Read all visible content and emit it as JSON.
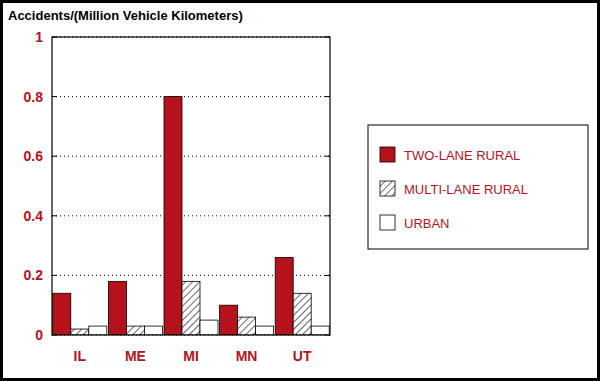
{
  "chart_data": {
    "type": "bar",
    "title": "Accidents/(Million Vehicle Kilometers)",
    "categories": [
      "IL",
      "ME",
      "MI",
      "MN",
      "UT"
    ],
    "series": [
      {
        "name": "TWO-LANE RURAL",
        "color": "#b5121b",
        "values": [
          0.14,
          0.18,
          0.8,
          0.1,
          0.26
        ]
      },
      {
        "name": "MULTI-LANE RURAL",
        "color": "#ffffff",
        "values": [
          0.02,
          0.03,
          0.18,
          0.06,
          0.14
        ]
      },
      {
        "name": "URBAN",
        "color": "#ffffff",
        "values": [
          0.03,
          0.03,
          0.05,
          0.03,
          0.03
        ]
      }
    ],
    "ylim": [
      0,
      1
    ],
    "yticks": [
      0,
      0.2,
      0.4,
      0.6,
      0.8,
      1
    ],
    "grid": true,
    "legend": "right"
  }
}
